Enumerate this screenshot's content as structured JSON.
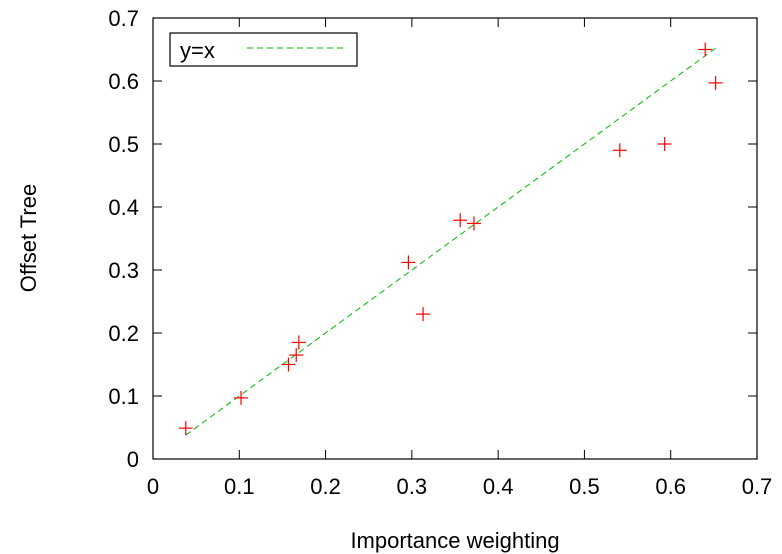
{
  "chart_data": {
    "type": "scatter",
    "xlabel": "Importance weighting",
    "ylabel": "Offset Tree",
    "xlim": [
      0,
      0.7
    ],
    "ylim": [
      0,
      0.7
    ],
    "x_ticks": [
      "0",
      "0.1",
      "0.2",
      "0.3",
      "0.4",
      "0.5",
      "0.6",
      "0.7"
    ],
    "y_ticks": [
      "0",
      "0.1",
      "0.2",
      "0.3",
      "0.4",
      "0.5",
      "0.6",
      "0.7"
    ],
    "grid": false,
    "legend": {
      "placement": "top-left",
      "entries": [
        {
          "label": "y=x"
        }
      ]
    },
    "series": [
      {
        "kind": "points",
        "color": "#ff0000",
        "marker": "plus",
        "x": [
          0.038,
          0.102,
          0.157,
          0.166,
          0.169,
          0.296,
          0.313,
          0.356,
          0.372,
          0.541,
          0.593,
          0.64,
          0.652
        ],
        "y": [
          0.049,
          0.097,
          0.15,
          0.165,
          0.185,
          0.312,
          0.23,
          0.379,
          0.374,
          0.49,
          0.5,
          0.65,
          0.597
        ]
      },
      {
        "kind": "line",
        "name": "y=x",
        "color": "#00bb00",
        "dash": true,
        "x": [
          0.038,
          0.652
        ],
        "y": [
          0.038,
          0.652
        ]
      }
    ]
  }
}
